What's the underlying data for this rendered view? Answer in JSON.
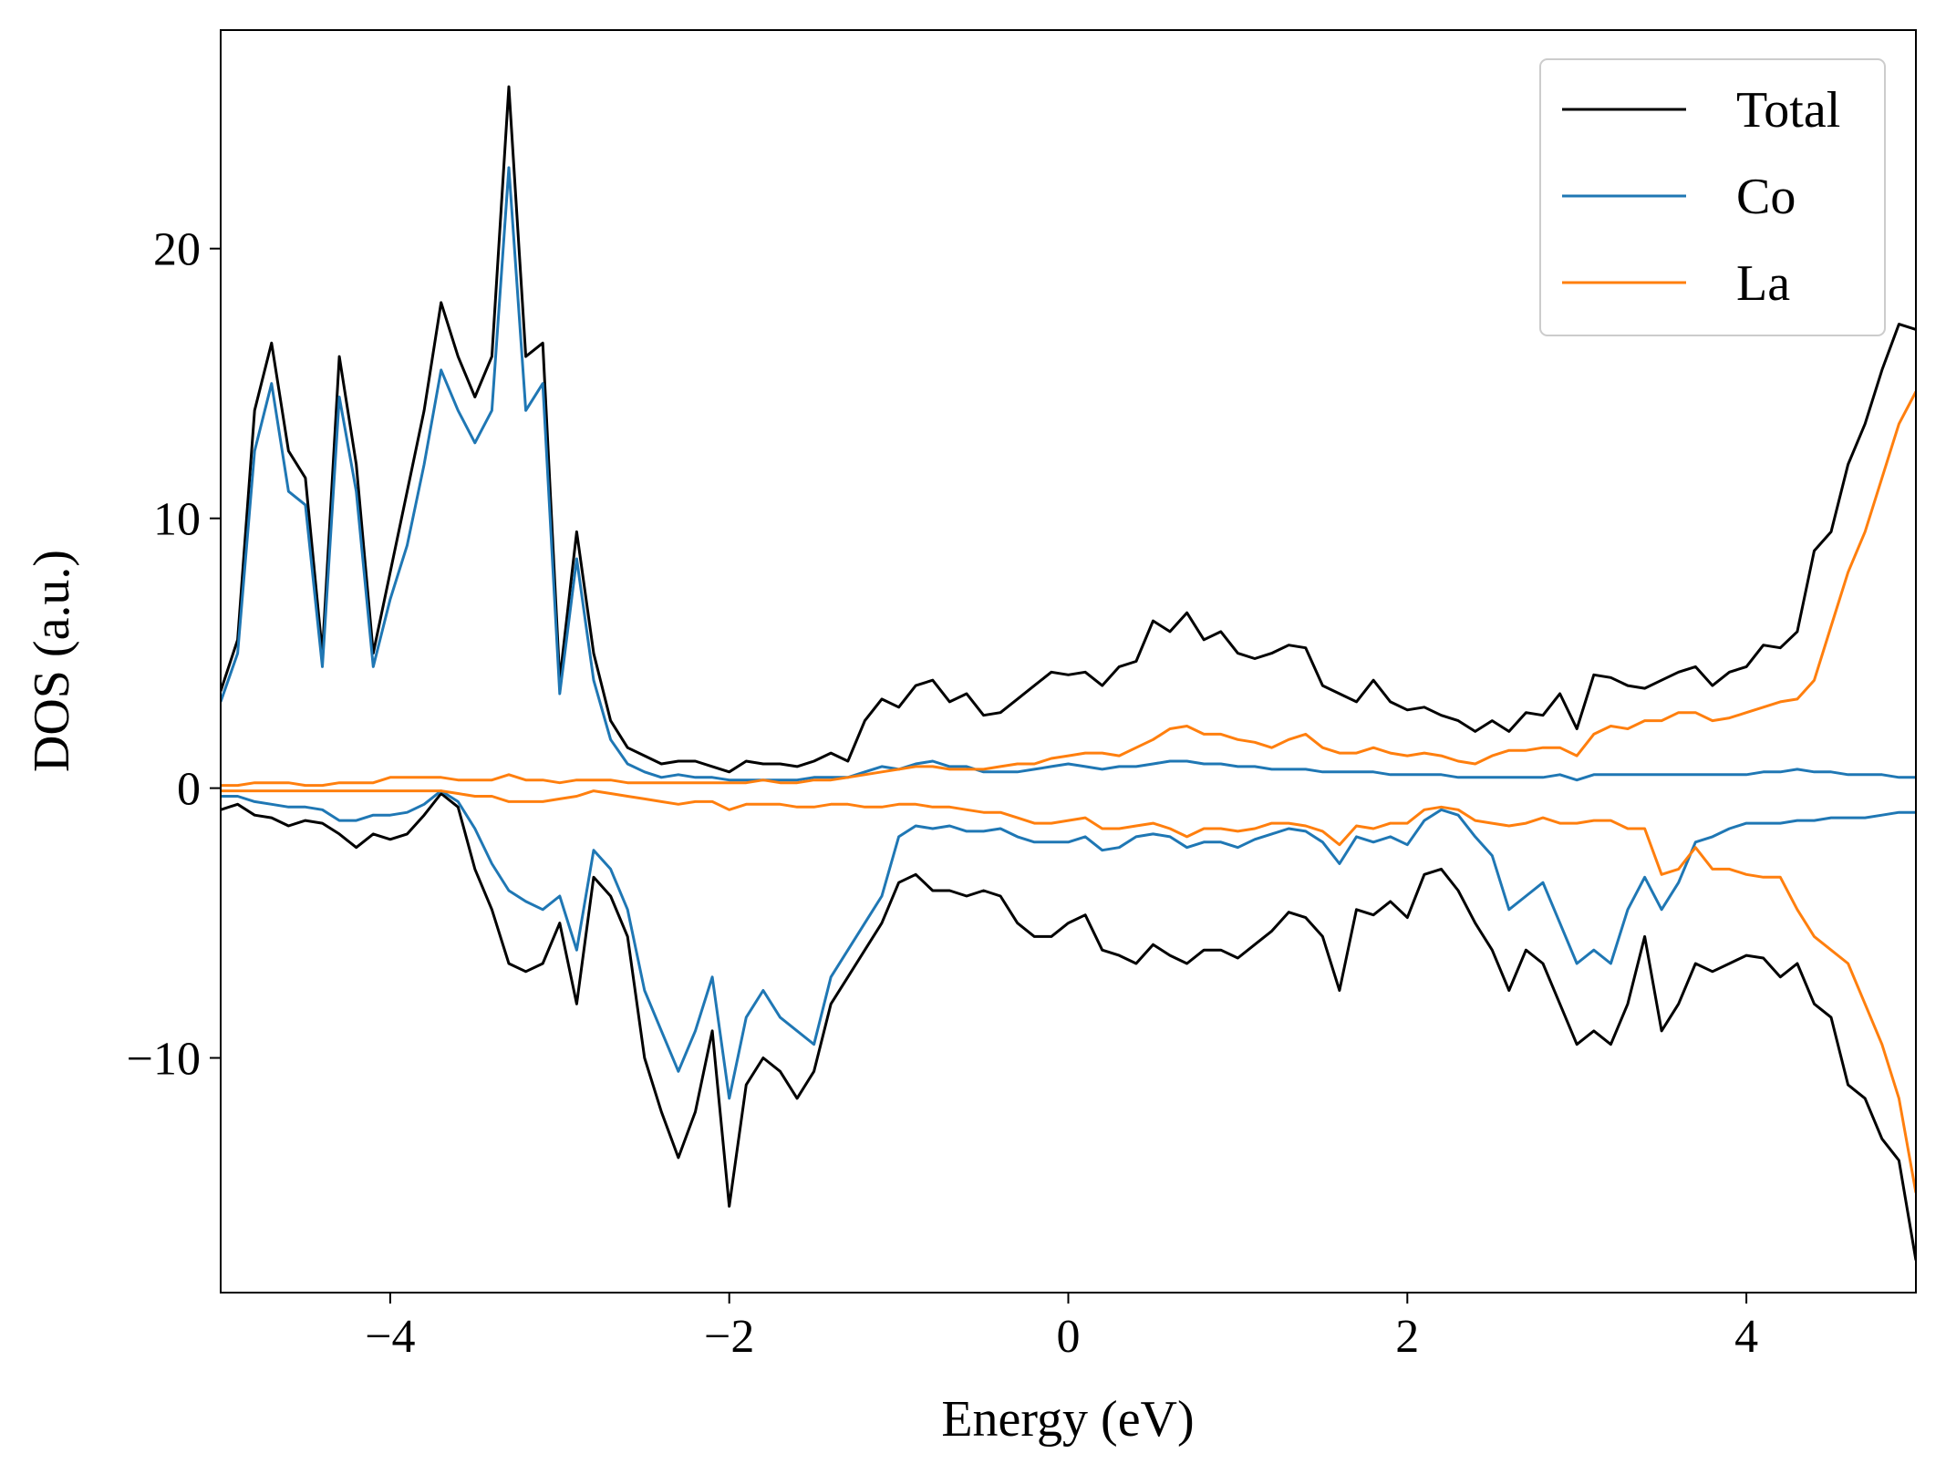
{
  "chart_data": {
    "type": "line",
    "xlabel": "Energy (eV)",
    "ylabel": "DOS (a.u.)",
    "xlim": [
      -5,
      5
    ],
    "ylim": [
      -18.7,
      28.1
    ],
    "xticks": [
      {
        "value": -4,
        "label": "−4"
      },
      {
        "value": -2,
        "label": "−2"
      },
      0,
      2,
      4
    ],
    "yticks": [
      {
        "value": -10,
        "label": "−10"
      },
      0,
      10,
      20
    ],
    "legend": "upper right",
    "x": [
      -5.0,
      -4.9,
      -4.8,
      -4.7,
      -4.6,
      -4.5,
      -4.4,
      -4.3,
      -4.2,
      -4.1,
      -4.0,
      -3.9,
      -3.8,
      -3.7,
      -3.6,
      -3.5,
      -3.4,
      -3.3,
      -3.2,
      -3.1,
      -3.0,
      -2.9,
      -2.8,
      -2.7,
      -2.6,
      -2.5,
      -2.4,
      -2.3,
      -2.2,
      -2.1,
      -2.0,
      -1.9,
      -1.8,
      -1.7,
      -1.6,
      -1.5,
      -1.4,
      -1.3,
      -1.2,
      -1.1,
      -1.0,
      -0.9,
      -0.8,
      -0.7,
      -0.6,
      -0.5,
      -0.4,
      -0.3,
      -0.2,
      -0.1,
      0.0,
      0.1,
      0.2,
      0.3,
      0.4,
      0.5,
      0.6,
      0.7,
      0.8,
      0.9,
      1.0,
      1.1,
      1.2,
      1.3,
      1.4,
      1.5,
      1.6,
      1.7,
      1.8,
      1.9,
      2.0,
      2.1,
      2.2,
      2.3,
      2.4,
      2.5,
      2.6,
      2.7,
      2.8,
      2.9,
      3.0,
      3.1,
      3.2,
      3.3,
      3.4,
      3.5,
      3.6,
      3.7,
      3.8,
      3.9,
      4.0,
      4.1,
      4.2,
      4.3,
      4.4,
      4.5,
      4.6,
      4.7,
      4.8,
      4.9,
      5.0
    ],
    "series": [
      {
        "name": "Total",
        "color": "#000000",
        "values": [
          3.6,
          5.5,
          14,
          16.5,
          12.5,
          11.5,
          5,
          16,
          12,
          5,
          8,
          11,
          14,
          18,
          16,
          14.5,
          16,
          26,
          16,
          16.5,
          4,
          9.5,
          5,
          2.5,
          1.5,
          1.2,
          0.9,
          1.0,
          1.0,
          0.8,
          0.6,
          1.0,
          0.9,
          0.9,
          0.8,
          1.0,
          1.3,
          1.0,
          2.5,
          3.3,
          3.0,
          3.8,
          4.0,
          3.2,
          3.5,
          2.7,
          2.8,
          3.3,
          3.8,
          4.3,
          4.2,
          4.3,
          3.8,
          4.5,
          4.7,
          6.2,
          5.8,
          6.5,
          5.5,
          5.8,
          5,
          4.8,
          5,
          5.3,
          5.2,
          3.8,
          3.5,
          3.2,
          4,
          3.2,
          2.9,
          3.0,
          2.7,
          2.5,
          2.1,
          2.5,
          2.1,
          2.8,
          2.7,
          3.5,
          2.2,
          4.2,
          4.1,
          3.8,
          3.7,
          4.0,
          4.3,
          4.5,
          3.8,
          4.3,
          4.5,
          5.3,
          5.2,
          5.8,
          8.8,
          9.5,
          12,
          13.5,
          15.5,
          17.2,
          17.0
        ],
        "values_down": [
          -0.8,
          -0.6,
          -1.0,
          -1.1,
          -1.4,
          -1.2,
          -1.3,
          -1.7,
          -2.2,
          -1.7,
          -1.9,
          -1.7,
          -1.0,
          -0.2,
          -0.7,
          -3,
          -4.5,
          -6.5,
          -6.8,
          -6.5,
          -5,
          -8,
          -3.3,
          -4,
          -5.5,
          -10,
          -12,
          -13.7,
          -12,
          -9,
          -15.5,
          -11,
          -10,
          -10.5,
          -11.5,
          -10.5,
          -8,
          -7,
          -6,
          -5,
          -3.5,
          -3.2,
          -3.8,
          -3.8,
          -4,
          -3.8,
          -4,
          -5,
          -5.5,
          -5.5,
          -5,
          -4.7,
          -6,
          -6.2,
          -6.5,
          -5.8,
          -6.2,
          -6.5,
          -6,
          -6,
          -6.3,
          -5.8,
          -5.3,
          -4.6,
          -4.8,
          -5.5,
          -7.5,
          -4.5,
          -4.7,
          -4.2,
          -4.8,
          -3.2,
          -3.0,
          -3.8,
          -5,
          -6,
          -7.5,
          -6,
          -6.5,
          -8,
          -9.5,
          -9,
          -9.5,
          -8,
          -5.5,
          -9,
          -8,
          -6.5,
          -6.8,
          -6.5,
          -6.2,
          -6.3,
          -7,
          -6.5,
          -8,
          -8.5,
          -11,
          -11.5,
          -13,
          -13.8,
          -17.5
        ]
      },
      {
        "name": "Co",
        "color": "#1f77b4",
        "values": [
          3.2,
          5,
          12.5,
          15,
          11,
          10.5,
          4.5,
          14.5,
          11,
          4.5,
          7,
          9,
          12,
          15.5,
          14,
          12.8,
          14,
          23,
          14,
          15,
          3.5,
          8.5,
          4,
          1.8,
          0.9,
          0.6,
          0.4,
          0.5,
          0.4,
          0.4,
          0.3,
          0.3,
          0.3,
          0.3,
          0.3,
          0.4,
          0.4,
          0.4,
          0.6,
          0.8,
          0.7,
          0.9,
          1.0,
          0.8,
          0.8,
          0.6,
          0.6,
          0.6,
          0.7,
          0.8,
          0.9,
          0.8,
          0.7,
          0.8,
          0.8,
          0.9,
          1.0,
          1.0,
          0.9,
          0.9,
          0.8,
          0.8,
          0.7,
          0.7,
          0.7,
          0.6,
          0.6,
          0.6,
          0.6,
          0.5,
          0.5,
          0.5,
          0.5,
          0.4,
          0.4,
          0.4,
          0.4,
          0.4,
          0.4,
          0.5,
          0.3,
          0.5,
          0.5,
          0.5,
          0.5,
          0.5,
          0.5,
          0.5,
          0.5,
          0.5,
          0.5,
          0.6,
          0.6,
          0.7,
          0.6,
          0.6,
          0.5,
          0.5,
          0.5,
          0.4,
          0.4
        ],
        "values_down": [
          -0.3,
          -0.3,
          -0.5,
          -0.6,
          -0.7,
          -0.7,
          -0.8,
          -1.2,
          -1.2,
          -1.0,
          -1.0,
          -0.9,
          -0.6,
          -0.1,
          -0.5,
          -1.5,
          -2.8,
          -3.8,
          -4.2,
          -4.5,
          -4,
          -6,
          -2.3,
          -3,
          -4.5,
          -7.5,
          -9,
          -10.5,
          -9,
          -7,
          -11.5,
          -8.5,
          -7.5,
          -8.5,
          -9,
          -9.5,
          -7,
          -6,
          -5,
          -4,
          -1.8,
          -1.4,
          -1.5,
          -1.4,
          -1.6,
          -1.6,
          -1.5,
          -1.8,
          -2.0,
          -2.0,
          -2.0,
          -1.8,
          -2.3,
          -2.2,
          -1.8,
          -1.7,
          -1.8,
          -2.2,
          -2.0,
          -2.0,
          -2.2,
          -1.9,
          -1.7,
          -1.5,
          -1.6,
          -2.0,
          -2.8,
          -1.8,
          -2.0,
          -1.8,
          -2.1,
          -1.2,
          -0.8,
          -1.0,
          -1.8,
          -2.5,
          -4.5,
          -4.0,
          -3.5,
          -5,
          -6.5,
          -6,
          -6.5,
          -4.5,
          -3.3,
          -4.5,
          -3.5,
          -2.0,
          -1.8,
          -1.5,
          -1.3,
          -1.3,
          -1.3,
          -1.2,
          -1.2,
          -1.1,
          -1.1,
          -1.1,
          -1.0,
          -0.9,
          -0.9
        ]
      },
      {
        "name": "La",
        "color": "#ff7f0e",
        "values": [
          0.1,
          0.1,
          0.2,
          0.2,
          0.2,
          0.1,
          0.1,
          0.2,
          0.2,
          0.2,
          0.4,
          0.4,
          0.4,
          0.4,
          0.3,
          0.3,
          0.3,
          0.5,
          0.3,
          0.3,
          0.2,
          0.3,
          0.3,
          0.3,
          0.2,
          0.2,
          0.2,
          0.2,
          0.2,
          0.2,
          0.2,
          0.2,
          0.3,
          0.2,
          0.2,
          0.3,
          0.3,
          0.4,
          0.5,
          0.6,
          0.7,
          0.8,
          0.8,
          0.7,
          0.7,
          0.7,
          0.8,
          0.9,
          0.9,
          1.1,
          1.2,
          1.3,
          1.3,
          1.2,
          1.5,
          1.8,
          2.2,
          2.3,
          2.0,
          2.0,
          1.8,
          1.7,
          1.5,
          1.8,
          2.0,
          1.5,
          1.3,
          1.3,
          1.5,
          1.3,
          1.2,
          1.3,
          1.2,
          1.0,
          0.9,
          1.2,
          1.4,
          1.4,
          1.5,
          1.5,
          1.2,
          2.0,
          2.3,
          2.2,
          2.5,
          2.5,
          2.8,
          2.8,
          2.5,
          2.6,
          2.8,
          3.0,
          3.2,
          3.3,
          4.0,
          6,
          8,
          9.5,
          11.5,
          13.5,
          14.7
        ],
        "values_down": [
          -0.1,
          -0.1,
          -0.1,
          -0.1,
          -0.1,
          -0.1,
          -0.1,
          -0.1,
          -0.1,
          -0.1,
          -0.1,
          -0.1,
          -0.1,
          -0.1,
          -0.2,
          -0.3,
          -0.3,
          -0.5,
          -0.5,
          -0.5,
          -0.4,
          -0.3,
          -0.1,
          -0.2,
          -0.3,
          -0.4,
          -0.5,
          -0.6,
          -0.5,
          -0.5,
          -0.8,
          -0.6,
          -0.6,
          -0.6,
          -0.7,
          -0.7,
          -0.6,
          -0.6,
          -0.7,
          -0.7,
          -0.6,
          -0.6,
          -0.7,
          -0.7,
          -0.8,
          -0.9,
          -0.9,
          -1.1,
          -1.3,
          -1.3,
          -1.2,
          -1.1,
          -1.5,
          -1.5,
          -1.4,
          -1.3,
          -1.5,
          -1.8,
          -1.5,
          -1.5,
          -1.6,
          -1.5,
          -1.3,
          -1.3,
          -1.4,
          -1.6,
          -2.1,
          -1.4,
          -1.5,
          -1.3,
          -1.3,
          -0.8,
          -0.7,
          -0.8,
          -1.2,
          -1.3,
          -1.4,
          -1.3,
          -1.1,
          -1.3,
          -1.3,
          -1.2,
          -1.2,
          -1.5,
          -1.5,
          -3.2,
          -3.0,
          -2.2,
          -3.0,
          -3.0,
          -3.2,
          -3.3,
          -3.3,
          -4.5,
          -5.5,
          -6,
          -6.5,
          -8,
          -9.5,
          -11.5,
          -15
        ]
      }
    ]
  }
}
